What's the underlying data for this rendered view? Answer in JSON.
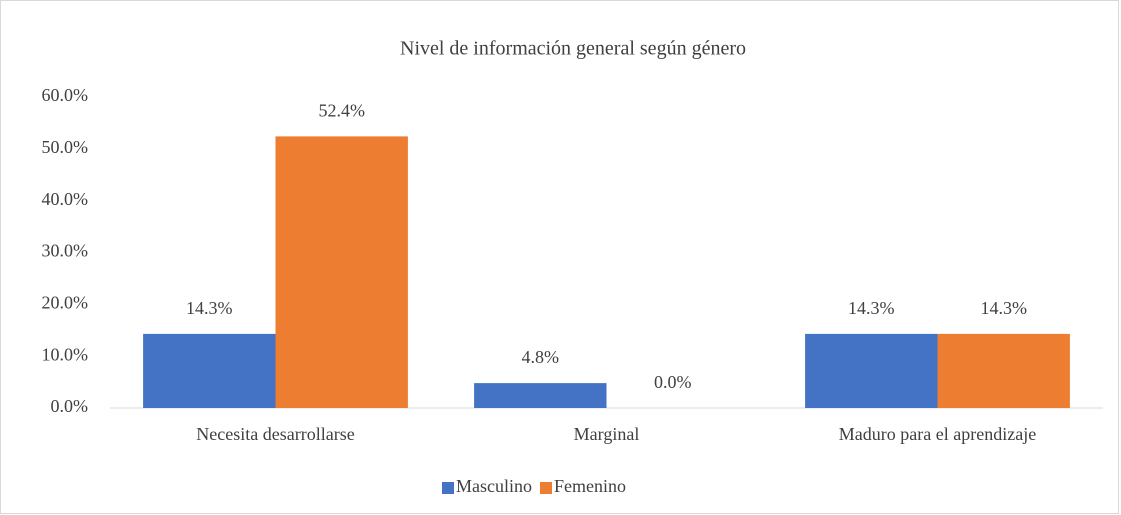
{
  "chart_data": {
    "type": "bar",
    "title": "Nivel de información general según género",
    "categories": [
      "Necesita desarrollarse",
      "Marginal",
      "Maduro para el aprendizaje"
    ],
    "series": [
      {
        "name": "Masculino",
        "color": "#4472c4",
        "values": [
          14.3,
          4.8,
          14.3
        ],
        "value_labels": [
          "14.3%",
          "4.8%",
          "14.3%"
        ]
      },
      {
        "name": "Femenino",
        "color": "#ed7d31",
        "values": [
          52.4,
          0.0,
          14.3
        ],
        "value_labels": [
          "52.4%",
          "0.0%",
          "14.3%"
        ]
      }
    ],
    "ylim": [
      0,
      60
    ],
    "yticks": [
      {
        "value": 0,
        "label": "0.0%"
      },
      {
        "value": 10,
        "label": "10.0%"
      },
      {
        "value": 20,
        "label": "20.0%"
      },
      {
        "value": 30,
        "label": "30.0%"
      },
      {
        "value": 40,
        "label": "40.0%"
      },
      {
        "value": 50,
        "label": "50.0%"
      },
      {
        "value": 60,
        "label": "60.0%"
      }
    ],
    "grid": false,
    "legend": "bottom"
  }
}
